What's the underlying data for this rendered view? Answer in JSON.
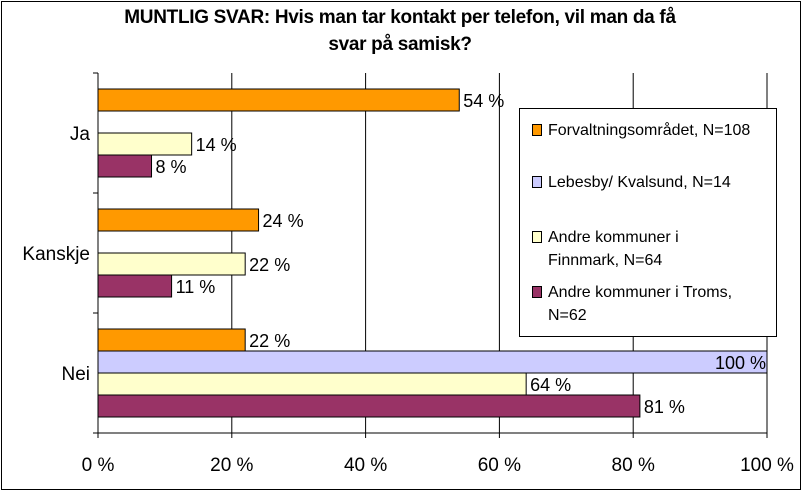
{
  "title_lines": [
    "MUNTLIG SVAR: Hvis man tar kontakt per telefon, vil man da få",
    "svar på samisk?"
  ],
  "colors": {
    "forvaltning": "#ff9900",
    "lebesby": "#ccccff",
    "finnmark": "#ffffcc",
    "troms": "#993366",
    "grid": "#000000",
    "background": "#ffffff"
  },
  "chart_data": {
    "type": "bar",
    "orientation": "horizontal",
    "title": "MUNTLIG SVAR: Hvis man tar kontakt per telefon, vil man da få svar på samisk?",
    "categories": [
      "Ja",
      "Kanskje",
      "Nei"
    ],
    "xlim": [
      0,
      100
    ],
    "xticks": [
      "0 %",
      "20 %",
      "40 %",
      "60 %",
      "80 %",
      "100 %"
    ],
    "grid": true,
    "legend_position": "right",
    "series": [
      {
        "name": "Forvaltningsområdet, N=108",
        "color": "#ff9900",
        "values": [
          54,
          24,
          22
        ],
        "labels": [
          "54 %",
          "24 %",
          "22 %"
        ]
      },
      {
        "name": "Lebesby/ Kvalsund, N=14",
        "color": "#ccccff",
        "values": [
          null,
          null,
          100
        ],
        "labels": [
          "",
          "",
          "100 %"
        ]
      },
      {
        "name": "Andre kommuner i Finnmark, N=64",
        "color": "#ffffcc",
        "values": [
          14,
          22,
          64
        ],
        "labels": [
          "14 %",
          "22 %",
          "64 %"
        ]
      },
      {
        "name": "Andre kommuner i Troms, N=62",
        "color": "#993366",
        "values": [
          8,
          11,
          81
        ],
        "labels": [
          "8 %",
          "11 %",
          "81 %"
        ]
      }
    ]
  },
  "legend": [
    {
      "lines": [
        "Forvaltningsområdet, N=108"
      ]
    },
    {
      "lines": [
        "Lebesby/ Kvalsund, N=14"
      ]
    },
    {
      "lines": [
        "Andre kommuner i",
        "Finnmark, N=64"
      ]
    },
    {
      "lines": [
        "Andre kommuner i Troms,",
        "N=62"
      ]
    }
  ]
}
